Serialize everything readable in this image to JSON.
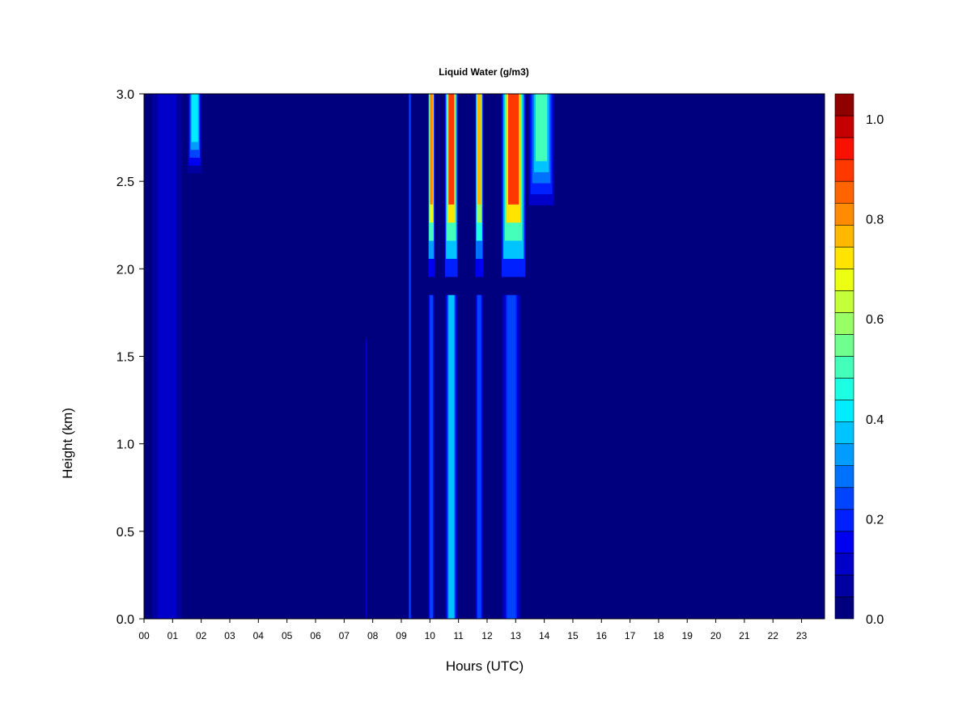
{
  "chart_data": {
    "type": "heatmap",
    "title": "Liquid Water (g/m3)",
    "xlabel": "Hours (UTC)",
    "ylabel": "Height (km)",
    "xlim": [
      0,
      23.9
    ],
    "ylim": [
      0.0,
      3.0
    ],
    "x_ticks": [
      "00",
      "01",
      "02",
      "03",
      "04",
      "05",
      "06",
      "07",
      "08",
      "09",
      "10",
      "11",
      "12",
      "13",
      "14",
      "15",
      "16",
      "17",
      "18",
      "19",
      "20",
      "21",
      "22",
      "23"
    ],
    "y_ticks": [
      "0.0",
      "0.5",
      "1.0",
      "1.5",
      "2.0",
      "2.5",
      "3.0"
    ],
    "colorbar": {
      "range": [
        0.0,
        1.05
      ],
      "step": 0.05,
      "tick_labels": [
        "0.0",
        "0.2",
        "0.4",
        "0.6",
        "0.8",
        "1.0"
      ],
      "colors": [
        "#00007F",
        "#00009F",
        "#0000C8",
        "#0000F0",
        "#0020FF",
        "#0044FF",
        "#0070FF",
        "#009CFF",
        "#00C4FF",
        "#00ECFF",
        "#1CFFE2",
        "#44FFBA",
        "#70FF8E",
        "#98FF66",
        "#C4FF3A",
        "#ECFF12",
        "#FFE400",
        "#FFB800",
        "#FF8C00",
        "#FF6400",
        "#FF3800",
        "#F81000",
        "#C40000",
        "#8F0000"
      ]
    },
    "liquid_water_features": [
      {
        "hours": [
          0.15,
          1.45
        ],
        "heights_km": [
          0.0,
          3.0
        ],
        "peak_g_m3": 0.12
      },
      {
        "hours": [
          1.55,
          2.0
        ],
        "heights_km": [
          2.5,
          3.0
        ],
        "peak_g_m3": 0.45
      },
      {
        "hours": [
          7.75,
          7.8
        ],
        "heights_km": [
          0.0,
          1.6
        ],
        "peak_g_m3": 0.15
      },
      {
        "hours": [
          9.25,
          9.35
        ],
        "heights_km": [
          0.0,
          3.0
        ],
        "peak_g_m3": 0.3
      },
      {
        "hours": [
          9.95,
          10.15
        ],
        "heights_km": [
          0.0,
          1.85
        ],
        "peak_g_m3": 0.3
      },
      {
        "hours": [
          9.95,
          10.15
        ],
        "heights_km": [
          1.85,
          3.0
        ],
        "peak_g_m3": 0.95
      },
      {
        "hours": [
          10.55,
          10.95
        ],
        "heights_km": [
          0.0,
          1.85
        ],
        "peak_g_m3": 0.4
      },
      {
        "hours": [
          10.55,
          10.95
        ],
        "heights_km": [
          1.85,
          3.0
        ],
        "peak_g_m3": 1.0
      },
      {
        "hours": [
          11.6,
          11.85
        ],
        "heights_km": [
          0.0,
          1.85
        ],
        "peak_g_m3": 0.3
      },
      {
        "hours": [
          11.6,
          11.85
        ],
        "heights_km": [
          1.85,
          3.0
        ],
        "peak_g_m3": 0.85
      },
      {
        "hours": [
          12.55,
          13.15
        ],
        "heights_km": [
          0.0,
          1.85
        ],
        "peak_g_m3": 0.25
      },
      {
        "hours": [
          12.55,
          13.3
        ],
        "heights_km": [
          1.85,
          3.0
        ],
        "peak_g_m3": 1.0
      },
      {
        "hours": [
          13.5,
          14.3
        ],
        "heights_km": [
          2.3,
          3.0
        ],
        "peak_g_m3": 0.55
      }
    ]
  }
}
